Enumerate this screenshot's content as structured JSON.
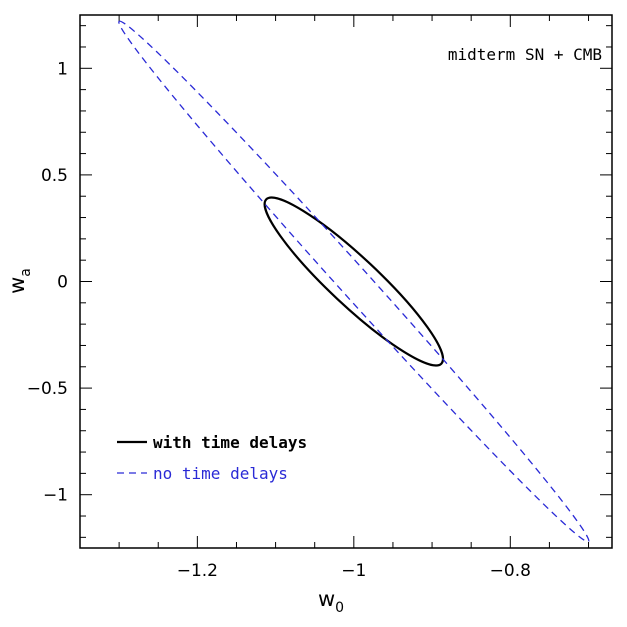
{
  "chart_data": {
    "type": "contour",
    "xlabel": "w",
    "xlabel_sub": "0",
    "ylabel": "w",
    "ylabel_sub": "a",
    "xlim": [
      -1.35,
      -0.67
    ],
    "ylim": [
      -1.25,
      1.25
    ],
    "x_ticks": [
      -1.2,
      -1.0,
      -0.8
    ],
    "x_tick_labels": [
      "−1.2",
      "−1",
      "−0.8"
    ],
    "y_ticks": [
      -1,
      -0.5,
      0,
      0.5,
      1
    ],
    "y_tick_labels": [
      "−1",
      "−0.5",
      "0",
      "0.5",
      "1"
    ],
    "annotation": "midterm SN + CMB",
    "legend_position": "lower-left",
    "series": [
      {
        "name": "with time delays",
        "style": "solid",
        "color": "#000000",
        "center": [
          -1.0,
          0.0
        ],
        "extreme_points": [
          [
            -1.112,
            0.385
          ],
          [
            -0.888,
            -0.385
          ]
        ]
      },
      {
        "name": "no time delays",
        "style": "dashed",
        "color": "#2a2ad6",
        "center": [
          -1.0,
          0.0
        ],
        "extreme_points": [
          [
            -1.3,
            1.22
          ],
          [
            -0.7,
            -1.22
          ]
        ]
      }
    ]
  }
}
